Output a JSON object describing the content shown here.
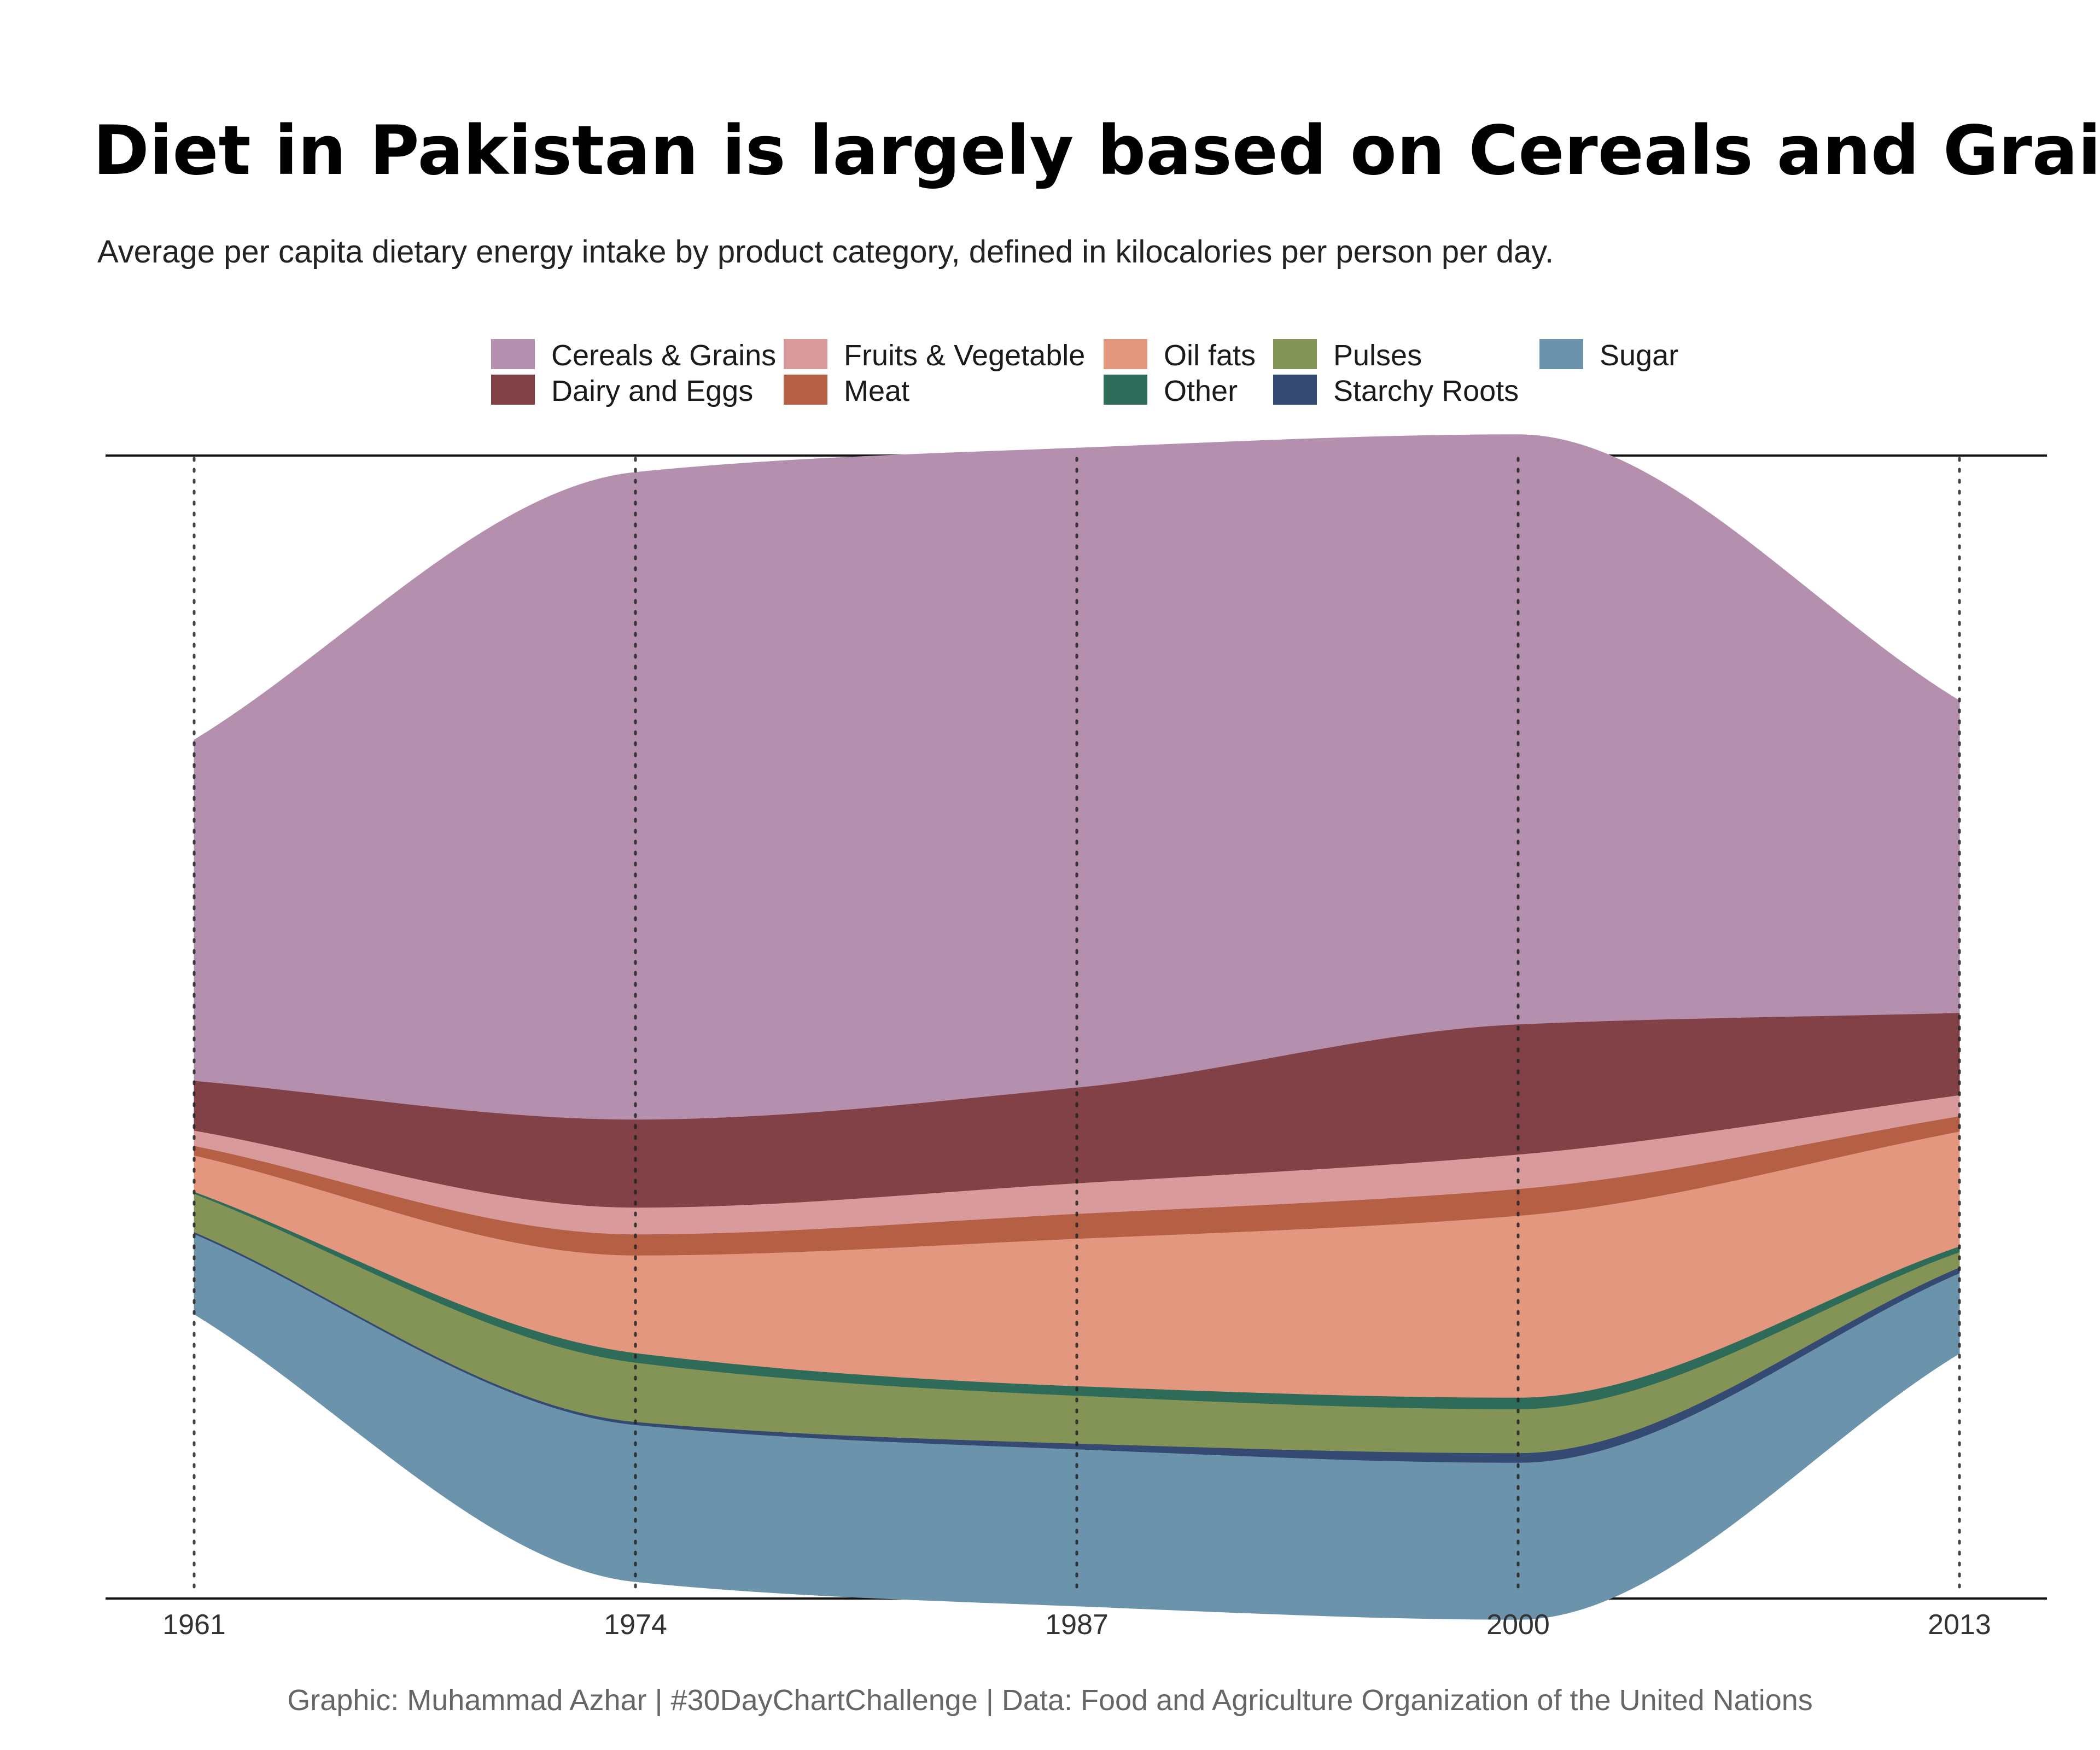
{
  "chart_data": {
    "type": "area",
    "variant": "streamgraph",
    "title": "Diet in Pakistan is largely based on Cereals and Grains.",
    "subtitle": "Average per capita dietary energy intake by product category, defined in kilocalories per person per day.",
    "caption": "Graphic: Muhammad Azhar | #30DayChartChallenge | Data:  Food and Agriculture Organization of the United Nations",
    "x": [
      1961,
      1974,
      1987,
      2000,
      2013
    ],
    "x_ticks": [
      "1961",
      "1974",
      "1987",
      "2000",
      "2013"
    ],
    "grid": "vertical dotted lines at x ticks",
    "legend_position": "top",
    "series": [
      {
        "name": "Sugar",
        "color": "#6b93ab",
        "values": [
          210,
          410,
          410,
          410,
          210
        ]
      },
      {
        "name": "Starchy Roots",
        "color": "#344a72",
        "values": [
          5,
          8,
          15,
          25,
          15
        ]
      },
      {
        "name": "Pulses",
        "color": "#849457",
        "values": [
          100,
          155,
          125,
          115,
          40
        ]
      },
      {
        "name": "Other",
        "color": "#2e6b58",
        "values": [
          5,
          25,
          25,
          30,
          15
        ]
      },
      {
        "name": "Oil fats",
        "color": "#e2977e",
        "values": [
          95,
          255,
          385,
          475,
          300
        ]
      },
      {
        "name": "Meat",
        "color": "#b55f44",
        "values": [
          25,
          55,
          65,
          70,
          40
        ]
      },
      {
        "name": "Fruits & Vegetable",
        "color": "#d89a9a",
        "values": [
          40,
          70,
          80,
          90,
          55
        ]
      },
      {
        "name": "Dairy and Eggs",
        "color": "#824146",
        "values": [
          130,
          230,
          250,
          340,
          215
        ]
      },
      {
        "name": "Cereals & Grains",
        "color": "#b48fae",
        "values": [
          890,
          1690,
          1670,
          1540,
          815
        ]
      }
    ],
    "legend_order": [
      "Cereals & Grains",
      "Fruits & Vegetable",
      "Oil fats",
      "Pulses",
      "Sugar",
      "Dairy and Eggs",
      "Meat",
      "Other",
      "Starchy Roots"
    ]
  }
}
